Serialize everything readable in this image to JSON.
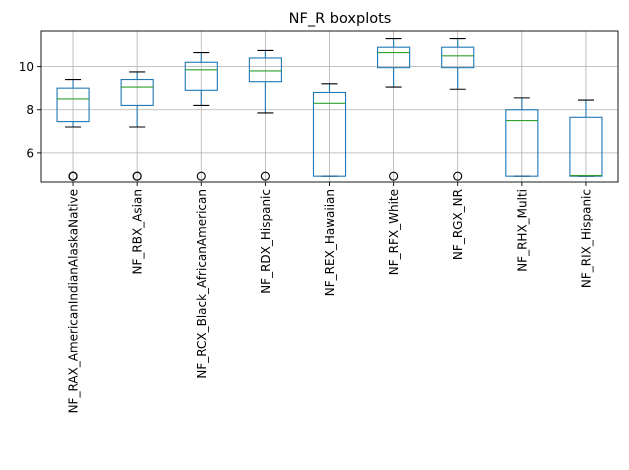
{
  "chart_data": {
    "type": "boxplot",
    "title": "NF_R boxplots",
    "xlabel": "",
    "ylabel": "",
    "ylim": [
      4.65,
      11.65
    ],
    "yticks": [
      6,
      8,
      10
    ],
    "grid": true,
    "colors": {
      "box": "#1f77b4",
      "median": "#2ca02c",
      "cap": "#000000",
      "grid": "#b0b0b0"
    },
    "categories": [
      "NF_RAX_AmericanIndianAlaskaNative",
      "NF_RBX_Asian",
      "NF_RCX_Black_AfricanAmerican",
      "NF_RDX_Hispanic",
      "NF_REX_Hawaiian",
      "NF_RFX_White",
      "NF_RGX_NR",
      "NF_RHX_Multi",
      "NF_RIX_Hispanic"
    ],
    "boxes": [
      {
        "whisker_low": 7.2,
        "q1": 7.45,
        "median": 8.5,
        "q3": 9.0,
        "whisker_high": 9.4,
        "fliers": [
          4.92,
          4.92,
          4.92
        ]
      },
      {
        "whisker_low": 7.2,
        "q1": 8.2,
        "median": 9.05,
        "q3": 9.4,
        "whisker_high": 9.75,
        "fliers": [
          4.92,
          4.92
        ]
      },
      {
        "whisker_low": 8.2,
        "q1": 8.9,
        "median": 9.85,
        "q3": 10.2,
        "whisker_high": 10.65,
        "fliers": [
          4.92
        ]
      },
      {
        "whisker_low": 7.85,
        "q1": 9.3,
        "median": 9.8,
        "q3": 10.4,
        "whisker_high": 10.75,
        "fliers": [
          4.92
        ]
      },
      {
        "whisker_low": 4.92,
        "q1": 4.92,
        "median": 8.3,
        "q3": 8.8,
        "whisker_high": 9.2,
        "fliers": []
      },
      {
        "whisker_low": 9.05,
        "q1": 9.95,
        "median": 10.65,
        "q3": 10.9,
        "whisker_high": 11.3,
        "fliers": [
          4.92
        ]
      },
      {
        "whisker_low": 8.95,
        "q1": 9.95,
        "median": 10.5,
        "q3": 10.9,
        "whisker_high": 11.3,
        "fliers": [
          4.92
        ]
      },
      {
        "whisker_low": 4.92,
        "q1": 4.92,
        "median": 7.5,
        "q3": 8.0,
        "whisker_high": 8.55,
        "fliers": []
      },
      {
        "whisker_low": 4.92,
        "q1": 4.92,
        "median": 4.95,
        "q3": 7.65,
        "whisker_high": 8.45,
        "fliers": []
      }
    ]
  }
}
